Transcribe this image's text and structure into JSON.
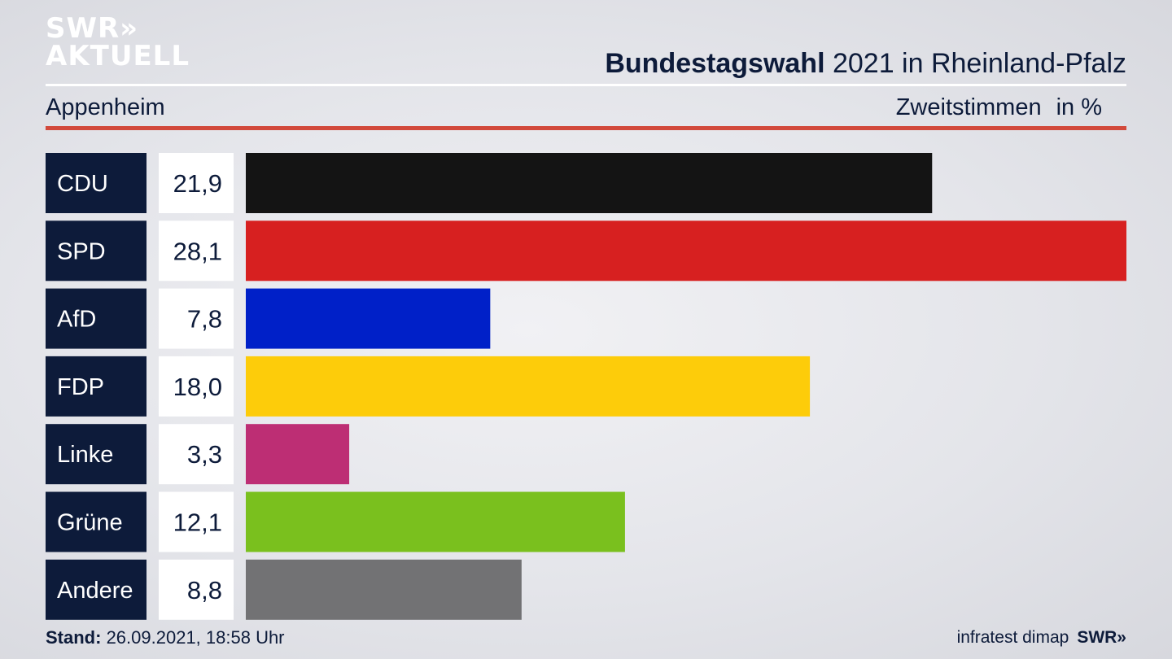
{
  "logo": {
    "line1": "SWR»",
    "line2": "AKTUELL"
  },
  "header": {
    "title_bold": "Bundestagswahl",
    "title_rest": " 2021 in Rheinland-Pfalz",
    "location": "Appenheim",
    "measure": "Zweitstimmen",
    "unit": "in %"
  },
  "footer": {
    "stand_label": "Stand:",
    "stand_value": " 26.09.2021, 18:58 Uhr",
    "source": "infratest dimap",
    "brand": "SWR»"
  },
  "colors": {
    "CDU": "#141414",
    "SPD": "#d72020",
    "AfD": "#0020c8",
    "FDP": "#fdcc0a",
    "Linke": "#bd2e74",
    "Grüne": "#7ac01e",
    "Andere": "#727274"
  },
  "chart_data": {
    "type": "bar",
    "orientation": "horizontal",
    "title": "Bundestagswahl 2021 in Rheinland-Pfalz",
    "subtitle": "Appenheim",
    "measure": "Zweitstimmen",
    "unit": "in %",
    "categories": [
      "CDU",
      "SPD",
      "AfD",
      "FDP",
      "Linke",
      "Grüne",
      "Andere"
    ],
    "values": [
      21.9,
      28.1,
      7.8,
      18.0,
      3.3,
      12.1,
      8.8
    ],
    "value_labels": [
      "21,9",
      "28,1",
      "7,8",
      "18,0",
      "3,3",
      "12,1",
      "8,8"
    ],
    "xlim": [
      0,
      28.1
    ],
    "grid": false,
    "legend": "none"
  }
}
